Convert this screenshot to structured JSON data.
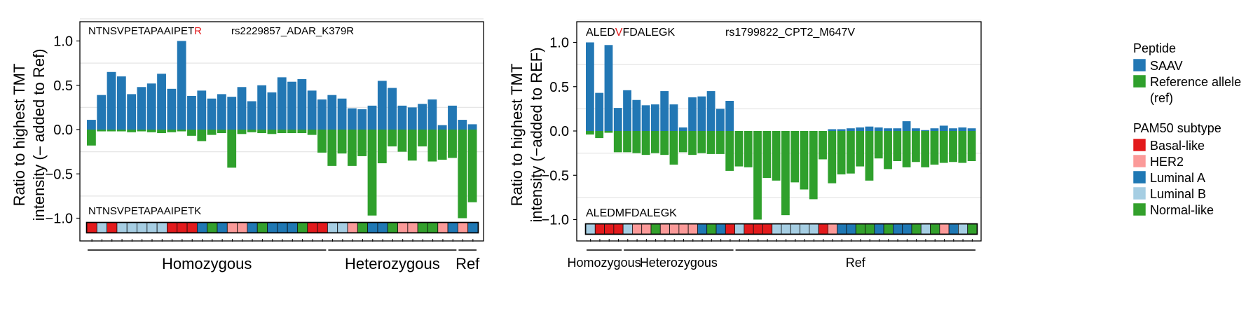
{
  "colors": {
    "saav": "#2277b4",
    "ref": "#2fa02c",
    "basal": "#e31a1c",
    "her2": "#fb9a99",
    "lumA": "#1f78b4",
    "lumB": "#a6cee3",
    "normal": "#33a02c",
    "ref_aa": "#e31a1c"
  },
  "legend": {
    "peptide_title": "Peptide",
    "saav_label": "SAAV",
    "ref_label_1": "Reference allele",
    "ref_label_2": "(ref)",
    "pam50_title": "PAM50 subtype",
    "subtypes": [
      "Basal-like",
      "HER2",
      "Luminal A",
      "Luminal B",
      "Normal-like"
    ]
  },
  "chart_data": [
    {
      "type": "bar",
      "ylabel": [
        "Ratio to highest TMT",
        "intensity (– added to Ref)"
      ],
      "ylim": [
        -1.12,
        1.12
      ],
      "yticks": [
        "1.0",
        "0.5",
        "0.0",
        "−0.5",
        "−1.0"
      ],
      "grid": true,
      "saav_peptide": {
        "prefix": "NTNSVPETAPAAIPET",
        "mut": "R",
        "suffix": ""
      },
      "ref_peptide": "NTNSVPETAPAAIPETK",
      "snp_label": "rs2229857_ADAR_K379R",
      "series": [
        {
          "name": "SAAV",
          "values": [
            0.11,
            0.39,
            0.65,
            0.6,
            0.4,
            0.48,
            0.52,
            0.63,
            0.46,
            1.0,
            0.38,
            0.44,
            0.35,
            0.4,
            0.37,
            0.48,
            0.32,
            0.5,
            0.42,
            0.59,
            0.54,
            0.57,
            0.44,
            0.34,
            0.39,
            0.35,
            0.24,
            0.23,
            0.27,
            0.55,
            0.47,
            0.27,
            0.25,
            0.29,
            0.34,
            0.05,
            0.27,
            0.11,
            0.06
          ]
        },
        {
          "name": "Reference allele (ref)",
          "values": [
            -0.18,
            -0.02,
            -0.02,
            -0.02,
            -0.03,
            -0.02,
            -0.03,
            -0.04,
            -0.03,
            -0.02,
            -0.07,
            -0.13,
            -0.06,
            -0.04,
            -0.43,
            -0.05,
            -0.03,
            -0.04,
            -0.05,
            -0.04,
            -0.04,
            -0.04,
            -0.06,
            -0.26,
            -0.41,
            -0.27,
            -0.41,
            -0.3,
            -0.97,
            -0.38,
            -0.19,
            -0.25,
            -0.35,
            -0.19,
            -0.36,
            -0.34,
            -0.32,
            -1.0,
            -0.82
          ]
        }
      ],
      "subtype_strip": [
        "basal",
        "lumB",
        "basal",
        "lumB",
        "lumB",
        "lumB",
        "lumB",
        "lumB",
        "basal",
        "basal",
        "basal",
        "lumA",
        "normal",
        "lumA",
        "her2",
        "her2",
        "lumA",
        "normal",
        "lumA",
        "lumA",
        "lumA",
        "normal",
        "basal",
        "basal",
        "lumB",
        "lumB",
        "her2",
        "normal",
        "lumA",
        "lumA",
        "normal",
        "her2",
        "her2",
        "normal",
        "normal",
        "her2",
        "lumA",
        "her2",
        "lumA"
      ],
      "groups": [
        {
          "label": "Homozygous",
          "start": 0,
          "end": 23
        },
        {
          "label": "Heterozygous",
          "start": 24,
          "end": 36
        },
        {
          "label": "Ref",
          "start": 37,
          "end": 38
        }
      ]
    },
    {
      "type": "bar",
      "ylabel": [
        "Ratio to highest TMT",
        "intensity (−added to REF)"
      ],
      "ylim": [
        -1.12,
        1.12
      ],
      "yticks": [
        "1.0",
        "0.5",
        "0.0",
        "−0.5",
        "−1.0"
      ],
      "grid": true,
      "saav_peptide": {
        "prefix": "ALED",
        "mut": "V",
        "suffix": "FDALEGK"
      },
      "ref_peptide": "ALEDMFDALEGK",
      "snp_label": "rs1799822_CPT2_M647V",
      "series": [
        {
          "name": "SAAV",
          "values": [
            1.0,
            0.43,
            0.97,
            0.26,
            0.46,
            0.35,
            0.29,
            0.3,
            0.45,
            0.3,
            0.04,
            0.38,
            0.39,
            0.45,
            0.25,
            0.34,
            0.0,
            0.0,
            0.0,
            0.0,
            0.0,
            0.0,
            0.0,
            0.0,
            0.0,
            0.0,
            0.02,
            0.02,
            0.03,
            0.04,
            0.05,
            0.04,
            0.03,
            0.03,
            0.11,
            0.03,
            0.01,
            0.03,
            0.06,
            0.03,
            0.04,
            0.03
          ]
        },
        {
          "name": "Reference allele (ref)",
          "values": [
            -0.04,
            -0.08,
            -0.02,
            -0.24,
            -0.24,
            -0.25,
            -0.27,
            -0.25,
            -0.27,
            -0.38,
            -0.24,
            -0.27,
            -0.25,
            -0.26,
            -0.26,
            -0.45,
            -0.4,
            -0.41,
            -1.0,
            -0.53,
            -0.56,
            -0.95,
            -0.58,
            -0.66,
            -0.77,
            -0.32,
            -0.59,
            -0.49,
            -0.48,
            -0.4,
            -0.56,
            -0.31,
            -0.43,
            -0.34,
            -0.41,
            -0.35,
            -0.41,
            -0.38,
            -0.36,
            -0.35,
            -0.36,
            -0.34
          ]
        }
      ],
      "subtype_strip": [
        "lumB",
        "basal",
        "basal",
        "basal",
        "lumB",
        "her2",
        "her2",
        "normal",
        "her2",
        "her2",
        "her2",
        "her2",
        "lumA",
        "normal",
        "lumA",
        "basal",
        "lumB",
        "basal",
        "basal",
        "basal",
        "lumB",
        "lumB",
        "lumB",
        "lumB",
        "lumB",
        "basal",
        "her2",
        "lumA",
        "lumA",
        "normal",
        "normal",
        "lumA",
        "normal",
        "lumA",
        "lumA",
        "normal",
        "lumB",
        "normal",
        "her2",
        "lumA",
        "lumB",
        "normal"
      ],
      "groups": [
        {
          "label": "Homozygous",
          "start": 0,
          "end": 3
        },
        {
          "label": "Heterozygous",
          "start": 4,
          "end": 15
        },
        {
          "label": "Ref",
          "start": 16,
          "end": 41
        }
      ]
    }
  ]
}
